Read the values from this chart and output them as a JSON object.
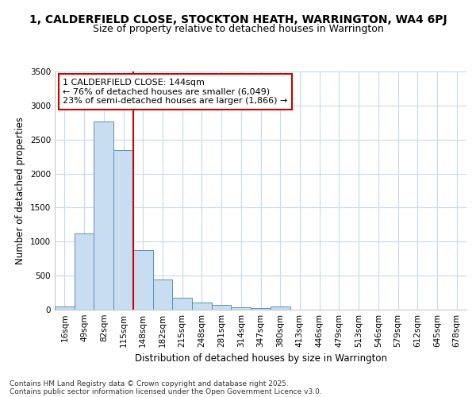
{
  "title_line1": "1, CALDERFIELD CLOSE, STOCKTON HEATH, WARRINGTON, WA4 6PJ",
  "title_line2": "Size of property relative to detached houses in Warrington",
  "xlabel": "Distribution of detached houses by size in Warrington",
  "ylabel": "Number of detached properties",
  "footnote1": "Contains HM Land Registry data © Crown copyright and database right 2025.",
  "footnote2": "Contains public sector information licensed under the Open Government Licence v3.0.",
  "annotation_title": "1 CALDERFIELD CLOSE: 144sqm",
  "annotation_line2": "← 76% of detached houses are smaller (6,049)",
  "annotation_line3": "23% of semi-detached houses are larger (1,866) →",
  "categories": [
    "16sqm",
    "49sqm",
    "82sqm",
    "115sqm",
    "148sqm",
    "182sqm",
    "215sqm",
    "248sqm",
    "281sqm",
    "314sqm",
    "347sqm",
    "380sqm",
    "413sqm",
    "446sqm",
    "479sqm",
    "513sqm",
    "546sqm",
    "579sqm",
    "612sqm",
    "645sqm",
    "678sqm"
  ],
  "values": [
    50,
    1120,
    2760,
    2350,
    880,
    440,
    175,
    100,
    65,
    30,
    28,
    50,
    5,
    4,
    3,
    2,
    2,
    1,
    1,
    1,
    0
  ],
  "bar_color": "#c9ddf0",
  "bar_edge_color": "#5a8fc0",
  "vline_color": "#cc0000",
  "vline_x_index": 4,
  "ylim": [
    0,
    3500
  ],
  "yticks": [
    0,
    500,
    1000,
    1500,
    2000,
    2500,
    3000,
    3500
  ],
  "bg_color": "#ffffff",
  "grid_color": "#c8d8f0",
  "annotation_box_color": "#cc0000",
  "title_fontsize": 10,
  "subtitle_fontsize": 9,
  "axis_label_fontsize": 8.5,
  "tick_fontsize": 7.5,
  "annotation_fontsize": 8,
  "footnote_fontsize": 6.5
}
